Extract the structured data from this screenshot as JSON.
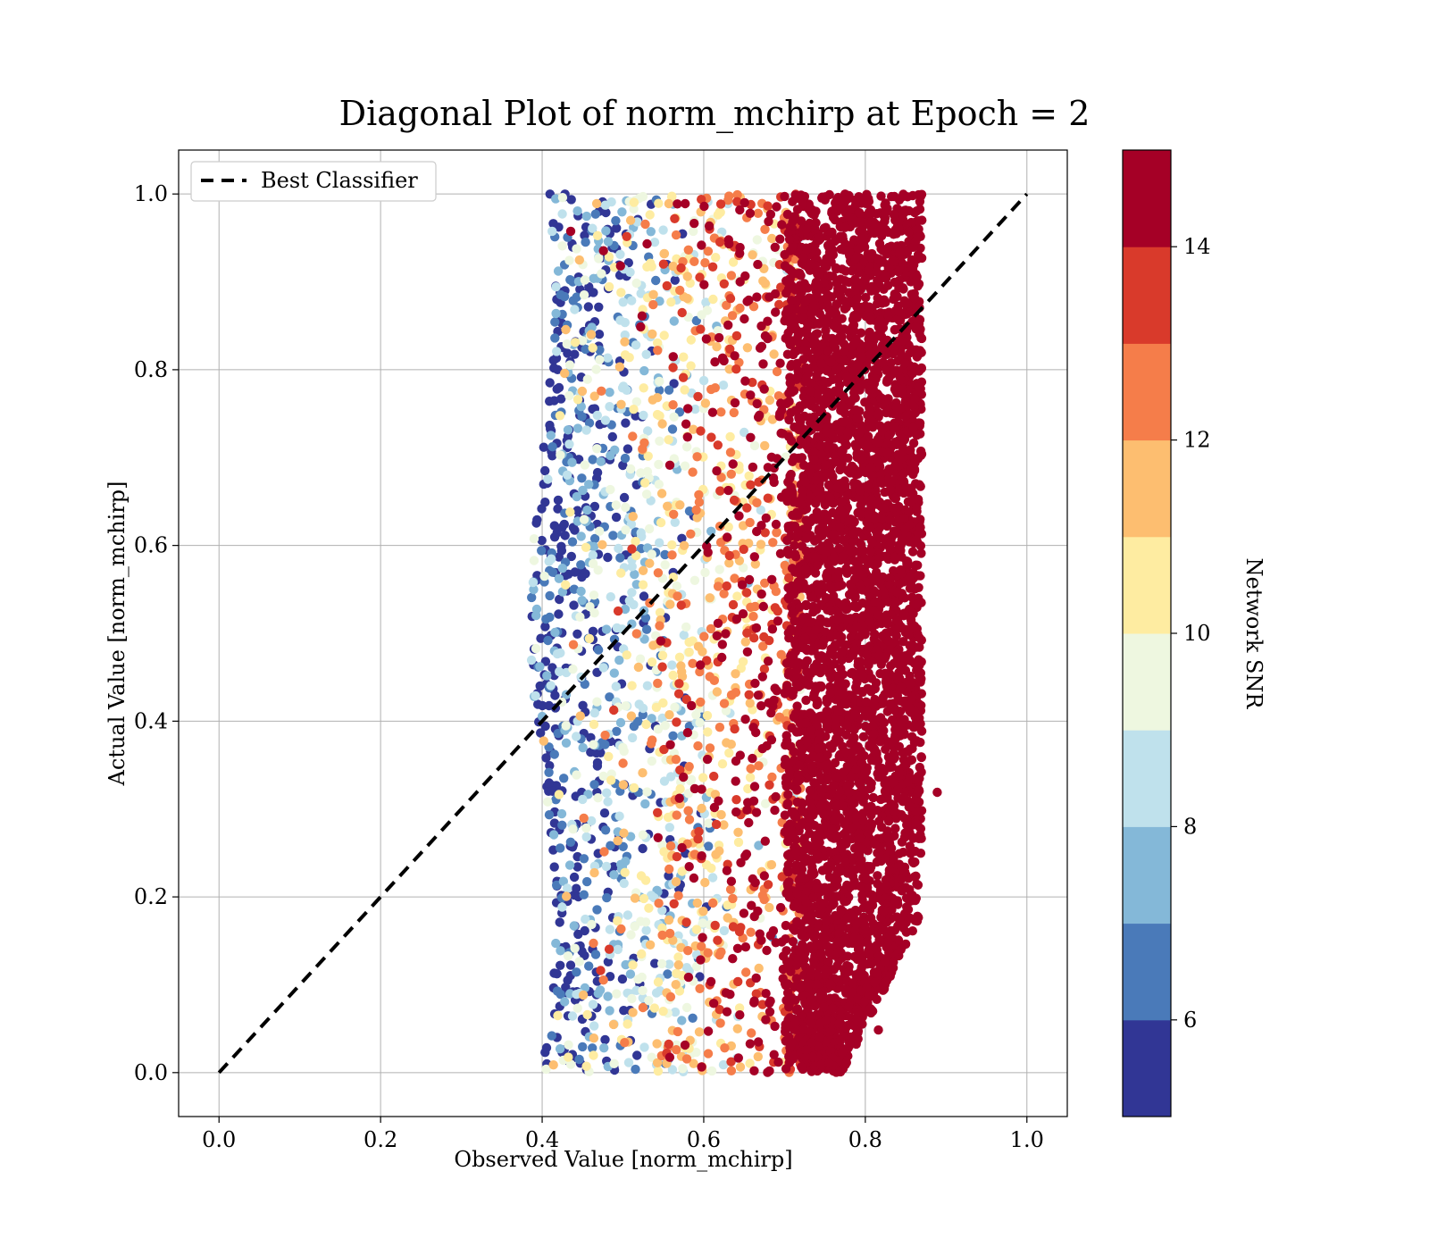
{
  "chart_data": {
    "type": "scatter",
    "title": "Diagonal Plot of norm_mchirp at Epoch = 2",
    "xlabel": "Observed Value [norm_mchirp]",
    "ylabel": "Actual Value [norm_mchirp]",
    "xlim": [
      -0.05,
      1.05
    ],
    "ylim": [
      -0.05,
      1.05
    ],
    "x_ticks": [
      0.0,
      0.2,
      0.4,
      0.6,
      0.8,
      1.0
    ],
    "y_ticks": [
      0.0,
      0.2,
      0.4,
      0.6,
      0.8,
      1.0
    ],
    "x_tick_labels": [
      "0.0",
      "0.2",
      "0.4",
      "0.6",
      "0.8",
      "1.0"
    ],
    "y_tick_labels": [
      "0.0",
      "0.2",
      "0.4",
      "0.6",
      "0.8",
      "1.0"
    ],
    "grid": true,
    "legend": {
      "placement": "top-left",
      "entries": [
        "Best Classifier"
      ]
    },
    "reference_line": {
      "name": "Best Classifier",
      "style": "dashed",
      "color": "#000000",
      "x": [
        0.0,
        1.0
      ],
      "y": [
        0.0,
        1.0
      ]
    },
    "colorbar": {
      "label": "Network SNR",
      "range": [
        5,
        15
      ],
      "ticks": [
        6,
        8,
        10,
        12,
        14
      ],
      "tick_labels": [
        "6",
        "8",
        "10",
        "12",
        "14"
      ],
      "bins": [
        {
          "from": 5,
          "to": 6,
          "color": "#313695"
        },
        {
          "from": 6,
          "to": 7,
          "color": "#4a7ab9"
        },
        {
          "from": 7,
          "to": 8,
          "color": "#84b8d8"
        },
        {
          "from": 8,
          "to": 9,
          "color": "#bfe1ec"
        },
        {
          "from": 9,
          "to": 10,
          "color": "#eef7e0"
        },
        {
          "from": 10,
          "to": 11,
          "color": "#feeca1"
        },
        {
          "from": 11,
          "to": 12,
          "color": "#fdbe70"
        },
        {
          "from": 12,
          "to": 13,
          "color": "#f57d4a"
        },
        {
          "from": 13,
          "to": 14,
          "color": "#d93a2b"
        },
        {
          "from": 14,
          "to": 15,
          "color": "#a50026"
        }
      ]
    },
    "point_cloud": {
      "x_range": [
        0.38,
        0.9
      ],
      "y_range": [
        0.0,
        1.0
      ],
      "snr_increases_with_x": true,
      "dense_core_x_range": [
        0.7,
        0.87
      ]
    }
  }
}
